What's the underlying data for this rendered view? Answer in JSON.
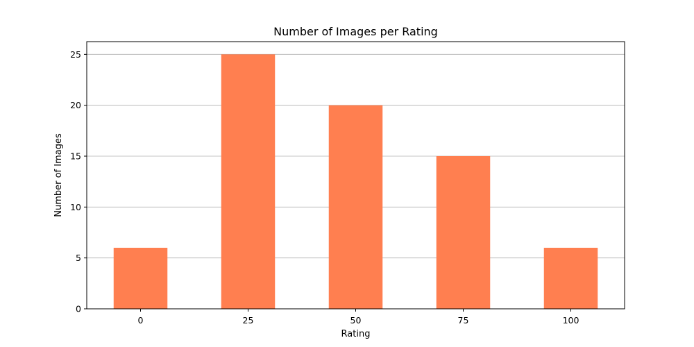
{
  "chart_data": {
    "type": "bar",
    "title": "Number of Images per Rating",
    "xlabel": "Rating",
    "ylabel": "Number of Images",
    "categories": [
      "0",
      "25",
      "50",
      "75",
      "100"
    ],
    "values": [
      6,
      25,
      20,
      15,
      6
    ],
    "ylim": [
      0,
      26.25
    ],
    "yticks": [
      0,
      5,
      10,
      15,
      20,
      25
    ],
    "grid": {
      "y": true,
      "x": false
    },
    "bar_color": "#ff7f50",
    "legend": "none"
  }
}
